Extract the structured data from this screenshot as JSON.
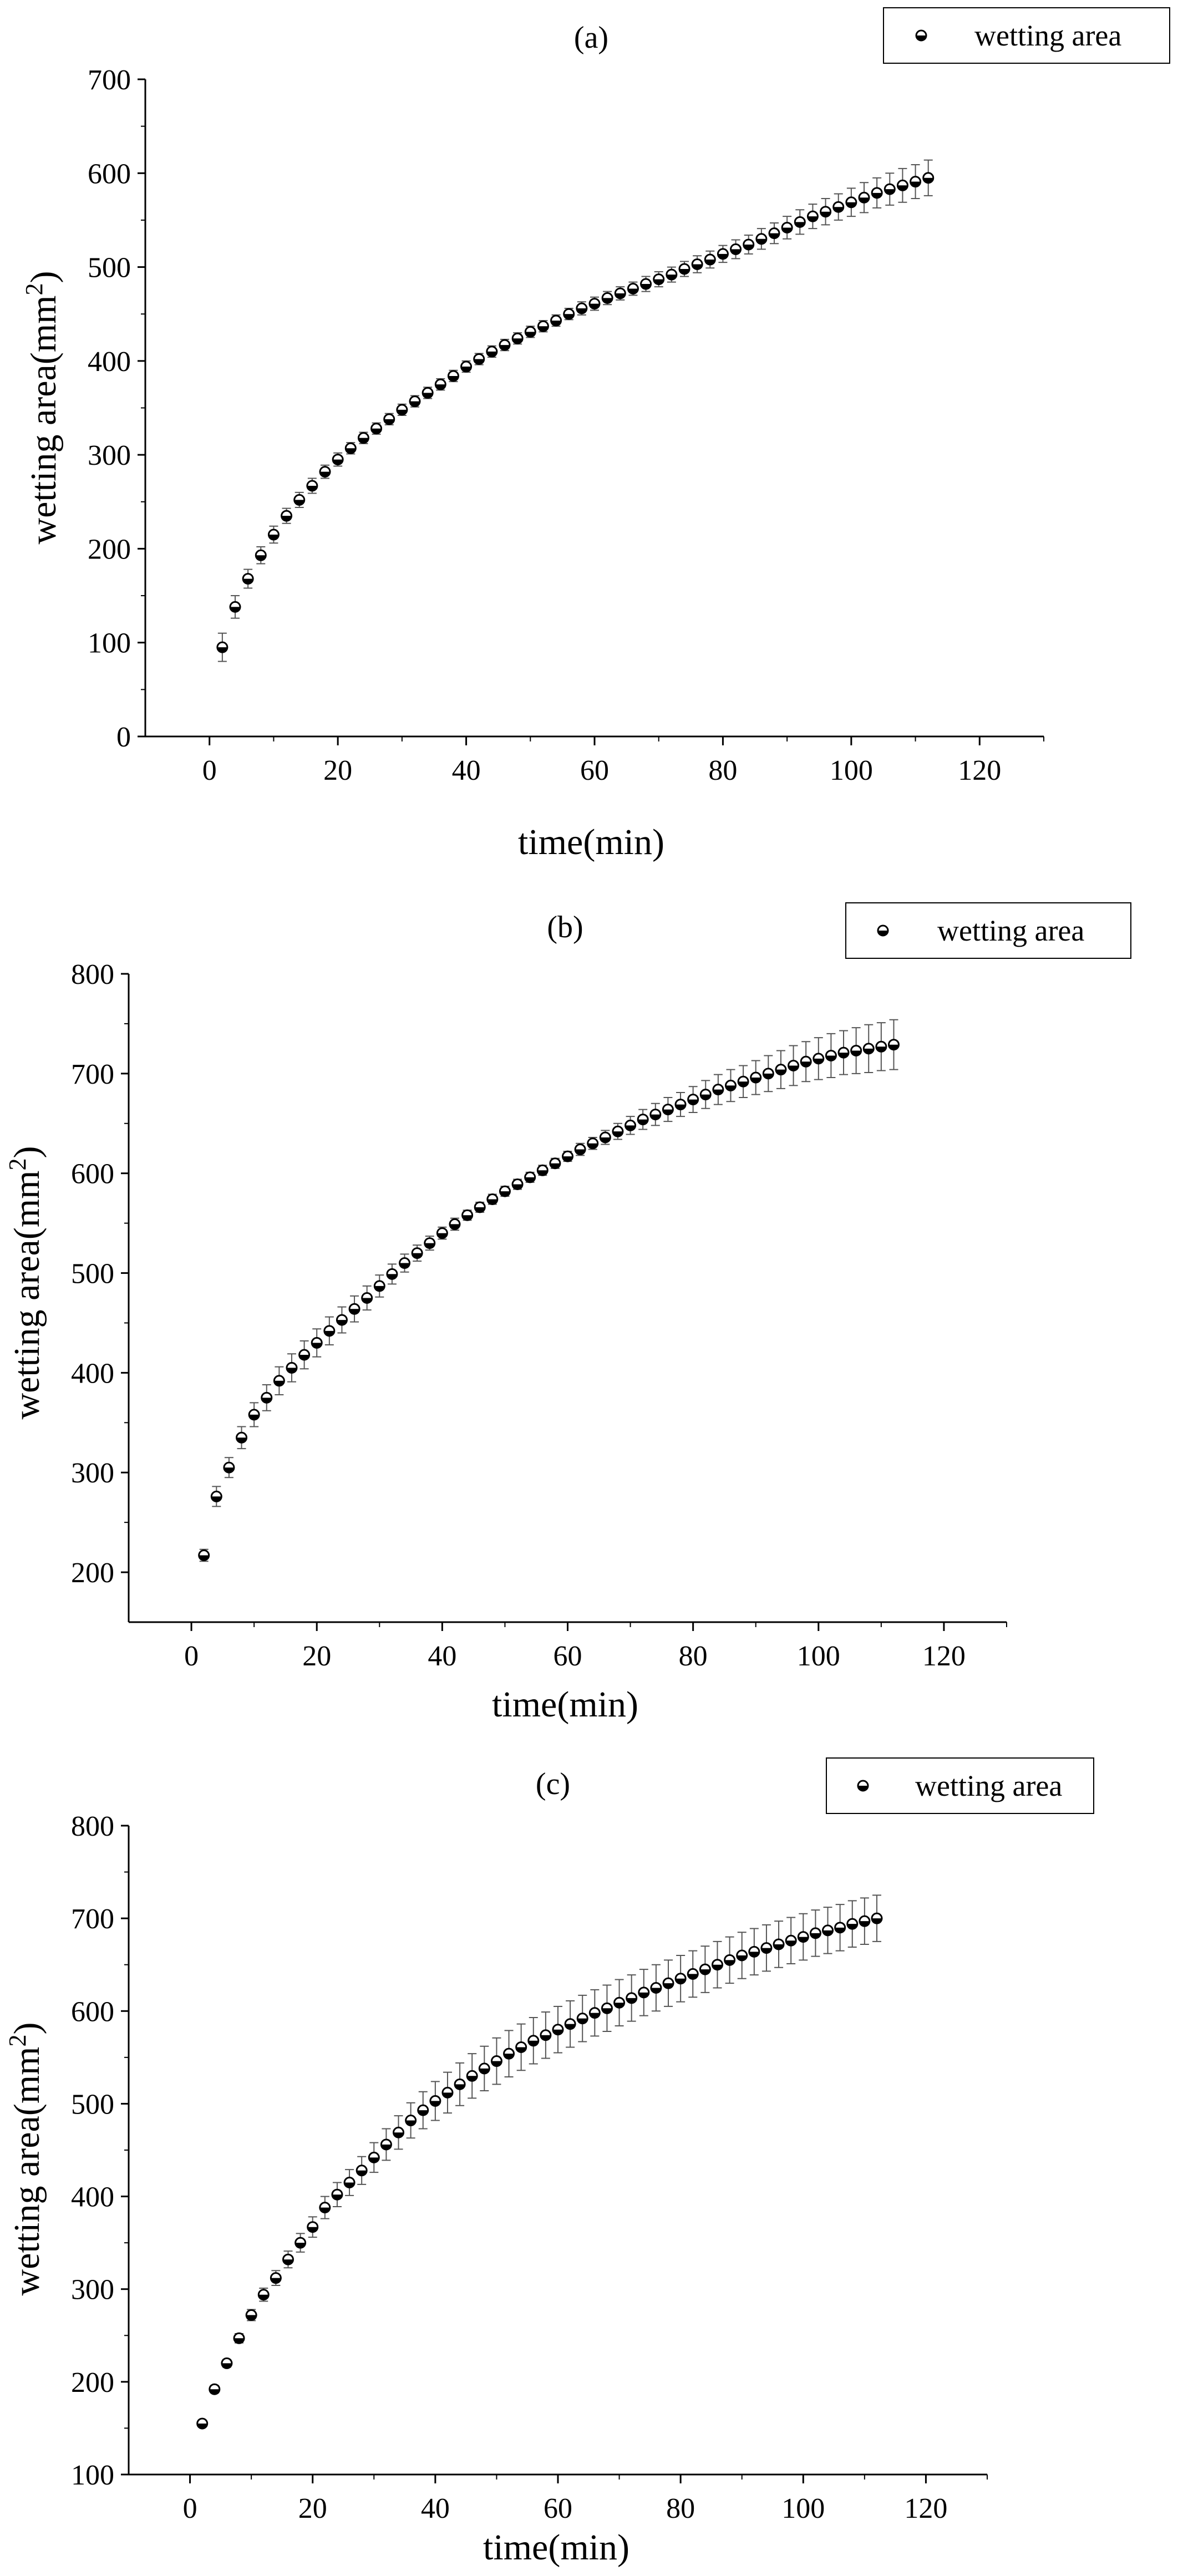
{
  "chart_data": [
    {
      "type": "scatter",
      "title": "(a)",
      "xlabel": "time(min)",
      "ylabel": "wetting area(mm",
      "ylabel_sup": "2",
      "ylabel_end": ")",
      "xlim": [
        -10,
        130
      ],
      "ylim": [
        0,
        700
      ],
      "x_ticks": [
        0,
        20,
        40,
        60,
        80,
        100,
        120
      ],
      "y_ticks": [
        0,
        100,
        200,
        300,
        400,
        500,
        600,
        700
      ],
      "legend": "top-right",
      "series": [
        {
          "name": "wetting area",
          "x": [
            2,
            4,
            6,
            8,
            10,
            12,
            14,
            16,
            18,
            20,
            22,
            24,
            26,
            28,
            30,
            32,
            34,
            36,
            38,
            40,
            42,
            44,
            46,
            48,
            50,
            52,
            54,
            56,
            58,
            60,
            62,
            64,
            66,
            68,
            70,
            72,
            74,
            76,
            78,
            80,
            82,
            84,
            86,
            88,
            90,
            92,
            94,
            96,
            98,
            100,
            102,
            104,
            106,
            108,
            110,
            112
          ],
          "y": [
            95,
            138,
            168,
            193,
            215,
            235,
            252,
            267,
            282,
            295,
            307,
            318,
            328,
            338,
            348,
            357,
            366,
            375,
            384,
            394,
            402,
            410,
            417,
            424,
            431,
            437,
            443,
            450,
            456,
            461,
            467,
            472,
            477,
            482,
            487,
            492,
            498,
            503,
            508,
            514,
            519,
            524,
            530,
            536,
            542,
            548,
            554,
            559,
            564,
            569,
            574,
            579,
            583,
            587,
            591,
            595
          ],
          "err": [
            15,
            12,
            10,
            9,
            9,
            8,
            8,
            8,
            7,
            7,
            6,
            6,
            6,
            6,
            6,
            6,
            6,
            6,
            6,
            6,
            6,
            6,
            6,
            6,
            6,
            6,
            6,
            6,
            7,
            7,
            7,
            7,
            7,
            8,
            8,
            8,
            8,
            9,
            9,
            9,
            10,
            10,
            11,
            11,
            12,
            13,
            13,
            14,
            14,
            15,
            16,
            16,
            17,
            18,
            18,
            19
          ]
        }
      ]
    },
    {
      "type": "scatter",
      "title": "(b)",
      "xlabel": "time(min)",
      "ylabel": "wetting area(mm",
      "ylabel_sup": "2",
      "ylabel_end": ")",
      "xlim": [
        -10,
        130
      ],
      "ylim": [
        150,
        800
      ],
      "x_ticks": [
        0,
        20,
        40,
        60,
        80,
        100,
        120
      ],
      "y_ticks": [
        200,
        300,
        400,
        500,
        600,
        700,
        800
      ],
      "legend": "top-right",
      "series": [
        {
          "name": "wetting area",
          "x": [
            2,
            4,
            6,
            8,
            10,
            12,
            14,
            16,
            18,
            20,
            22,
            24,
            26,
            28,
            30,
            32,
            34,
            36,
            38,
            40,
            42,
            44,
            46,
            48,
            50,
            52,
            54,
            56,
            58,
            60,
            62,
            64,
            66,
            68,
            70,
            72,
            74,
            76,
            78,
            80,
            82,
            84,
            86,
            88,
            90,
            92,
            94,
            96,
            98,
            100,
            102,
            104,
            106,
            108,
            110,
            112
          ],
          "y": [
            217,
            276,
            305,
            335,
            358,
            375,
            392,
            405,
            418,
            430,
            442,
            453,
            464,
            475,
            487,
            499,
            510,
            520,
            530,
            540,
            549,
            558,
            566,
            574,
            582,
            589,
            596,
            603,
            610,
            617,
            624,
            630,
            636,
            642,
            648,
            654,
            659,
            664,
            669,
            674,
            679,
            684,
            688,
            692,
            696,
            700,
            704,
            708,
            712,
            715,
            718,
            721,
            723,
            725,
            727,
            729
          ],
          "err": [
            6,
            10,
            10,
            11,
            12,
            13,
            14,
            14,
            14,
            14,
            14,
            13,
            13,
            12,
            11,
            10,
            9,
            8,
            7,
            6,
            6,
            5,
            5,
            5,
            5,
            5,
            5,
            5,
            5,
            5,
            6,
            6,
            7,
            8,
            9,
            10,
            11,
            12,
            12,
            13,
            14,
            15,
            16,
            16,
            17,
            18,
            19,
            20,
            20,
            21,
            22,
            22,
            23,
            24,
            24,
            25
          ]
        }
      ]
    },
    {
      "type": "scatter",
      "title": "(c)",
      "xlabel": "time(min)",
      "ylabel": "wetting area(mm",
      "ylabel_sup": "2",
      "ylabel_end": ")",
      "xlim": [
        -10,
        130
      ],
      "ylim": [
        100,
        800
      ],
      "x_ticks": [
        0,
        20,
        40,
        60,
        80,
        100,
        120
      ],
      "y_ticks": [
        100,
        200,
        300,
        400,
        500,
        600,
        700,
        800
      ],
      "legend": "top-right",
      "series": [
        {
          "name": "wetting area",
          "x": [
            2,
            4,
            6,
            8,
            10,
            12,
            14,
            16,
            18,
            20,
            22,
            24,
            26,
            28,
            30,
            32,
            34,
            36,
            38,
            40,
            42,
            44,
            46,
            48,
            50,
            52,
            54,
            56,
            58,
            60,
            62,
            64,
            66,
            68,
            70,
            72,
            74,
            76,
            78,
            80,
            82,
            84,
            86,
            88,
            90,
            92,
            94,
            96,
            98,
            100,
            102,
            104,
            106,
            108,
            110,
            112
          ],
          "y": [
            155,
            192,
            220,
            247,
            272,
            294,
            312,
            332,
            350,
            367,
            388,
            402,
            415,
            428,
            442,
            456,
            469,
            482,
            493,
            503,
            512,
            521,
            530,
            538,
            546,
            554,
            561,
            568,
            574,
            580,
            586,
            592,
            598,
            603,
            609,
            614,
            620,
            625,
            630,
            635,
            640,
            645,
            650,
            655,
            660,
            664,
            668,
            672,
            676,
            680,
            684,
            687,
            690,
            694,
            697,
            700
          ],
          "err": [
            3,
            4,
            4,
            5,
            6,
            7,
            8,
            9,
            10,
            11,
            12,
            13,
            14,
            15,
            16,
            17,
            18,
            19,
            20,
            21,
            22,
            23,
            24,
            24,
            25,
            25,
            25,
            25,
            25,
            25,
            25,
            25,
            25,
            25,
            25,
            25,
            25,
            25,
            25,
            25,
            25,
            25,
            25,
            25,
            25,
            25,
            25,
            25,
            25,
            25,
            25,
            25,
            25,
            25,
            25,
            25
          ]
        }
      ]
    }
  ]
}
